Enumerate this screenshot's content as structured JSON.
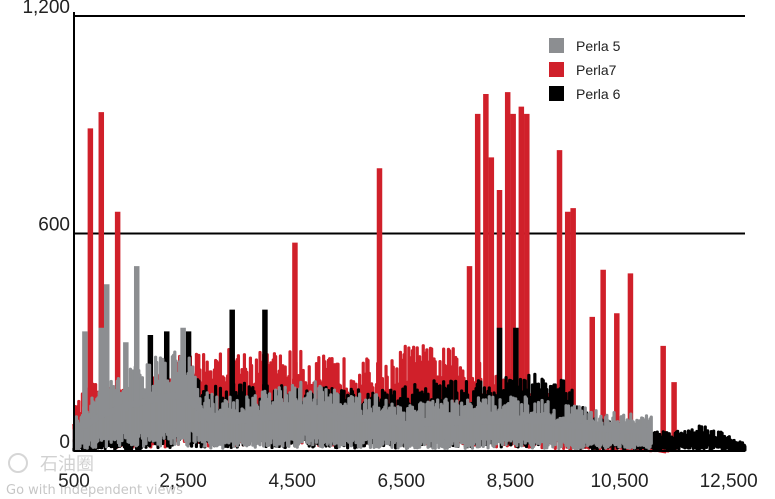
{
  "chart_data": {
    "type": "bar",
    "xlabel": "",
    "ylabel": "",
    "xlim": [
      500,
      12800
    ],
    "ylim": [
      0,
      1200
    ],
    "x_ticks": [
      "500",
      "2,500",
      "4,500",
      "6,500",
      "8,500",
      "10,500",
      "12,500"
    ],
    "x_tick_values": [
      500,
      2500,
      4500,
      6500,
      8500,
      10500,
      12500
    ],
    "y_ticks": [
      "0",
      "600",
      "1,200"
    ],
    "y_tick_values": [
      0,
      600,
      1200
    ],
    "grid": "horizontal",
    "legend_position": "top-right",
    "series": [
      {
        "name": "Perla7",
        "color": "#d0202a",
        "density": [
          [
            500,
            120
          ],
          [
            700,
            170
          ],
          [
            900,
            190
          ],
          [
            1300,
            170
          ],
          [
            1800,
            200
          ],
          [
            2200,
            230
          ],
          [
            2500,
            270
          ],
          [
            2900,
            280
          ],
          [
            3300,
            285
          ],
          [
            3700,
            285
          ],
          [
            4100,
            275
          ],
          [
            4500,
            280
          ],
          [
            4900,
            270
          ],
          [
            5300,
            255
          ],
          [
            5700,
            265
          ],
          [
            6000,
            250
          ],
          [
            6200,
            235
          ],
          [
            6600,
            300
          ],
          [
            7000,
            290
          ],
          [
            7400,
            285
          ],
          [
            7700,
            280
          ],
          [
            7900,
            250
          ],
          [
            8200,
            225
          ],
          [
            8600,
            215
          ],
          [
            8900,
            200
          ],
          [
            9200,
            160
          ],
          [
            9500,
            110
          ],
          [
            9800,
            80
          ],
          [
            10200,
            70
          ],
          [
            10600,
            40
          ],
          [
            11000,
            20
          ],
          [
            11400,
            0
          ]
        ],
        "spikes": [
          [
            800,
            890
          ],
          [
            1000,
            935
          ],
          [
            1300,
            660
          ],
          [
            4550,
            575
          ],
          [
            6100,
            780
          ],
          [
            7750,
            510
          ],
          [
            7900,
            930
          ],
          [
            8050,
            985
          ],
          [
            8150,
            810
          ],
          [
            8300,
            720
          ],
          [
            8450,
            990
          ],
          [
            8550,
            930
          ],
          [
            8700,
            950
          ],
          [
            8800,
            930
          ],
          [
            9400,
            830
          ],
          [
            9550,
            660
          ],
          [
            9650,
            670
          ],
          [
            10000,
            370
          ],
          [
            10200,
            500
          ],
          [
            10450,
            380
          ],
          [
            10700,
            490
          ],
          [
            11300,
            290
          ],
          [
            11500,
            190
          ]
        ]
      },
      {
        "name": "Perla 6",
        "color": "#000000",
        "density": [
          [
            500,
            40
          ],
          [
            1500,
            80
          ],
          [
            2000,
            140
          ],
          [
            2500,
            220
          ],
          [
            3000,
            185
          ],
          [
            3500,
            190
          ],
          [
            4000,
            195
          ],
          [
            4500,
            175
          ],
          [
            5000,
            180
          ],
          [
            5500,
            170
          ],
          [
            6000,
            170
          ],
          [
            6500,
            175
          ],
          [
            7000,
            200
          ],
          [
            7500,
            195
          ],
          [
            8000,
            200
          ],
          [
            8500,
            205
          ],
          [
            9000,
            215
          ],
          [
            9500,
            195
          ],
          [
            10000,
            95
          ],
          [
            10500,
            75
          ],
          [
            11000,
            60
          ],
          [
            11500,
            55
          ],
          [
            12000,
            75
          ],
          [
            12500,
            45
          ],
          [
            12800,
            20
          ]
        ],
        "spikes": [
          [
            1900,
            320
          ],
          [
            2200,
            330
          ],
          [
            2600,
            330
          ],
          [
            3400,
            390
          ],
          [
            4000,
            390
          ],
          [
            8300,
            340
          ],
          [
            8600,
            340
          ]
        ]
      },
      {
        "name": "Perla 5",
        "color": "#8c8e91",
        "density": [
          [
            500,
            90
          ],
          [
            1000,
            180
          ],
          [
            1500,
            230
          ],
          [
            2000,
            260
          ],
          [
            2300,
            280
          ],
          [
            2600,
            260
          ],
          [
            3000,
            160
          ],
          [
            3500,
            150
          ],
          [
            4000,
            165
          ],
          [
            4500,
            190
          ],
          [
            5000,
            200
          ],
          [
            5500,
            150
          ],
          [
            6000,
            165
          ],
          [
            6500,
            135
          ],
          [
            7000,
            140
          ],
          [
            7500,
            145
          ],
          [
            8000,
            150
          ],
          [
            8500,
            150
          ],
          [
            9000,
            155
          ],
          [
            9500,
            130
          ],
          [
            10000,
            115
          ],
          [
            10500,
            105
          ],
          [
            11100,
            100
          ]
        ],
        "spikes": [
          [
            700,
            330
          ],
          [
            1000,
            340
          ],
          [
            1100,
            460
          ],
          [
            1450,
            300
          ],
          [
            1650,
            510
          ],
          [
            2500,
            340
          ]
        ]
      }
    ]
  },
  "watermark": {
    "cn": "石油圈",
    "en": "Go with independent views"
  }
}
